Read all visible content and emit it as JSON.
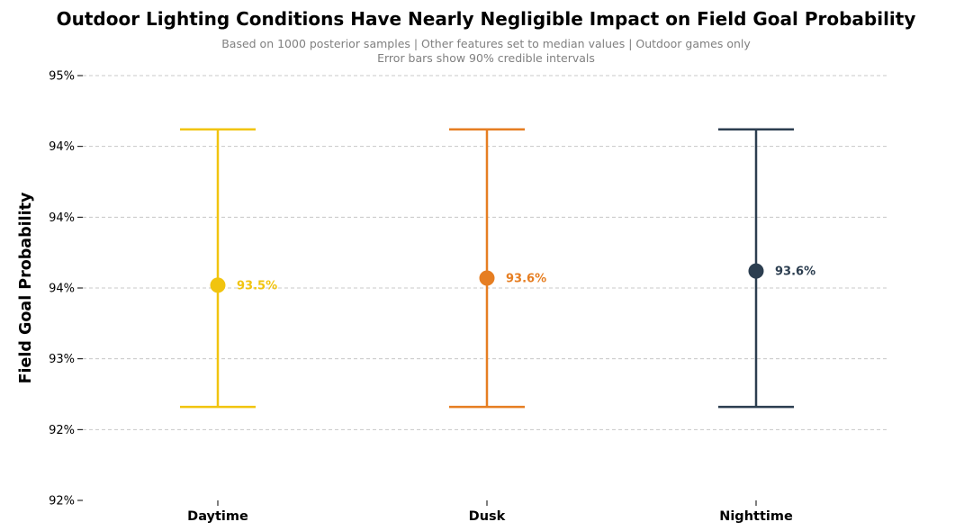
{
  "chart_data": {
    "type": "scatter",
    "title": "Outdoor Lighting Conditions Have Nearly Negligible Impact on Field Goal Probability",
    "subtitle_lines": [
      "Based on 1000 posterior samples | Other features set to median values | Outdoor games only",
      "Error bars show 90% credible intervals"
    ],
    "ylabel": "Field Goal Probability",
    "xlabel": "",
    "categories": [
      "Daytime",
      "Dusk",
      "Nighttime"
    ],
    "values": [
      0.9352,
      0.9357,
      0.9362
    ],
    "ci_lower": [
      0.9266,
      0.9266,
      0.9266
    ],
    "ci_upper": [
      0.9462,
      0.9462,
      0.9462
    ],
    "data_labels": [
      "93.5%",
      "93.6%",
      "93.6%"
    ],
    "colors": [
      "#f1c40f",
      "#e67e22",
      "#2c3e50"
    ],
    "ylim": [
      0.92,
      0.95
    ],
    "yticks": [
      0.92,
      0.925,
      0.93,
      0.935,
      0.94,
      0.945,
      0.95
    ],
    "ytick_labels": [
      "92%",
      "92%",
      "93%",
      "94%",
      "94%",
      "94%",
      "95%"
    ],
    "grid": true,
    "legend": "none"
  }
}
